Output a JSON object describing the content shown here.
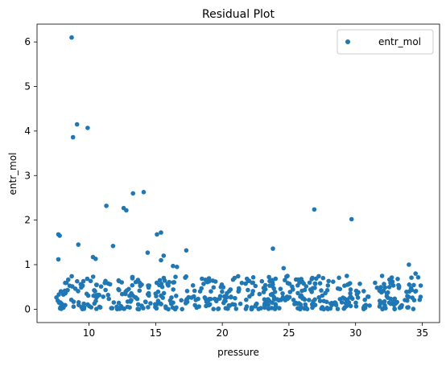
{
  "chart_data": {
    "type": "scatter",
    "title": "Residual Plot",
    "xlabel": "pressure",
    "ylabel": "entr_mol",
    "xlim": [
      6.1,
      36.3
    ],
    "ylim": [
      -0.3,
      6.4
    ],
    "xticks": [
      10,
      15,
      20,
      25,
      30,
      35
    ],
    "yticks": [
      0,
      1,
      2,
      3,
      4,
      5,
      6
    ],
    "grid": false,
    "legend_position": "top-right",
    "series": [
      {
        "name": "entr_mol",
        "color": "#1f77b4",
        "notable_points": [
          {
            "x": 8.7,
            "y": 6.1
          },
          {
            "x": 9.1,
            "y": 4.15
          },
          {
            "x": 8.8,
            "y": 3.86
          },
          {
            "x": 9.9,
            "y": 4.07
          },
          {
            "x": 7.7,
            "y": 1.68
          },
          {
            "x": 7.8,
            "y": 1.65
          },
          {
            "x": 7.7,
            "y": 1.12
          },
          {
            "x": 9.2,
            "y": 1.45
          },
          {
            "x": 10.3,
            "y": 1.17
          },
          {
            "x": 10.5,
            "y": 1.13
          },
          {
            "x": 11.3,
            "y": 2.32
          },
          {
            "x": 11.8,
            "y": 1.42
          },
          {
            "x": 12.6,
            "y": 2.27
          },
          {
            "x": 12.8,
            "y": 2.22
          },
          {
            "x": 13.3,
            "y": 2.6
          },
          {
            "x": 14.1,
            "y": 2.63
          },
          {
            "x": 14.4,
            "y": 1.27
          },
          {
            "x": 15.1,
            "y": 1.68
          },
          {
            "x": 15.4,
            "y": 1.72
          },
          {
            "x": 15.6,
            "y": 1.2
          },
          {
            "x": 15.4,
            "y": 1.1
          },
          {
            "x": 16.3,
            "y": 0.97
          },
          {
            "x": 16.6,
            "y": 0.95
          },
          {
            "x": 17.3,
            "y": 1.32
          },
          {
            "x": 23.8,
            "y": 1.36
          },
          {
            "x": 24.6,
            "y": 0.92
          },
          {
            "x": 26.9,
            "y": 2.24
          },
          {
            "x": 29.7,
            "y": 2.02
          },
          {
            "x": 34.0,
            "y": 1.0
          },
          {
            "x": 34.5,
            "y": 0.8
          }
        ],
        "bulk": {
          "x_range": [
            7.5,
            35.0
          ],
          "y_range": [
            0.0,
            0.75
          ],
          "count": 520,
          "description_from_plot": "dense band of points between 0 and about 0.7 across all pressure values"
        }
      }
    ]
  }
}
